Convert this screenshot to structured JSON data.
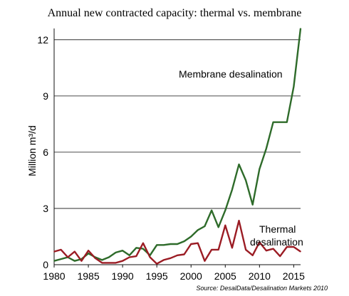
{
  "chart_data": {
    "type": "line",
    "title": "Annual new contracted capacity: thermal vs. membrane",
    "ylabel": "Million m³/d",
    "xlabel": "",
    "xlim": [
      1980,
      2016
    ],
    "ylim": [
      0,
      12.6
    ],
    "x_ticks": [
      1980,
      1985,
      1990,
      1995,
      2000,
      2005,
      2010,
      2015
    ],
    "y_ticks": [
      0,
      3,
      6,
      9,
      12
    ],
    "grid": "horizontal",
    "x": [
      1980,
      1981,
      1982,
      1983,
      1984,
      1985,
      1986,
      1987,
      1988,
      1989,
      1990,
      1991,
      1992,
      1993,
      1994,
      1995,
      1996,
      1997,
      1998,
      1999,
      2000,
      2001,
      2002,
      2003,
      2004,
      2005,
      2006,
      2007,
      2008,
      2009,
      2010,
      2011,
      2012,
      2013,
      2014,
      2015,
      2016
    ],
    "series": [
      {
        "name": "Membrane desalination",
        "color": "#2e6b2a",
        "values": [
          0.2,
          0.3,
          0.4,
          0.2,
          0.3,
          0.6,
          0.4,
          0.25,
          0.4,
          0.65,
          0.75,
          0.5,
          0.9,
          0.85,
          0.5,
          1.05,
          1.05,
          1.1,
          1.1,
          1.25,
          1.5,
          1.85,
          2.05,
          2.9,
          2.0,
          2.9,
          4.0,
          5.35,
          4.5,
          3.2,
          5.1,
          6.2,
          7.6,
          7.6,
          7.6,
          9.5,
          12.6
        ]
      },
      {
        "name": "Thermal desalination",
        "color": "#9b1c24",
        "values": [
          0.7,
          0.8,
          0.4,
          0.7,
          0.2,
          0.75,
          0.35,
          0.1,
          0.1,
          0.1,
          0.2,
          0.4,
          0.45,
          1.15,
          0.4,
          0.05,
          0.25,
          0.35,
          0.5,
          0.55,
          1.1,
          1.15,
          0.2,
          0.8,
          0.8,
          2.1,
          0.9,
          2.35,
          0.8,
          0.5,
          1.2,
          0.75,
          0.85,
          0.45,
          0.95,
          0.95,
          0.7
        ]
      }
    ],
    "annotations": {
      "membrane_label": "Membrane desalination",
      "thermal_label_line1": "Thermal",
      "thermal_label_line2": "desalination",
      "source": "Source: DesalData/Desalination Markets 2010"
    }
  }
}
